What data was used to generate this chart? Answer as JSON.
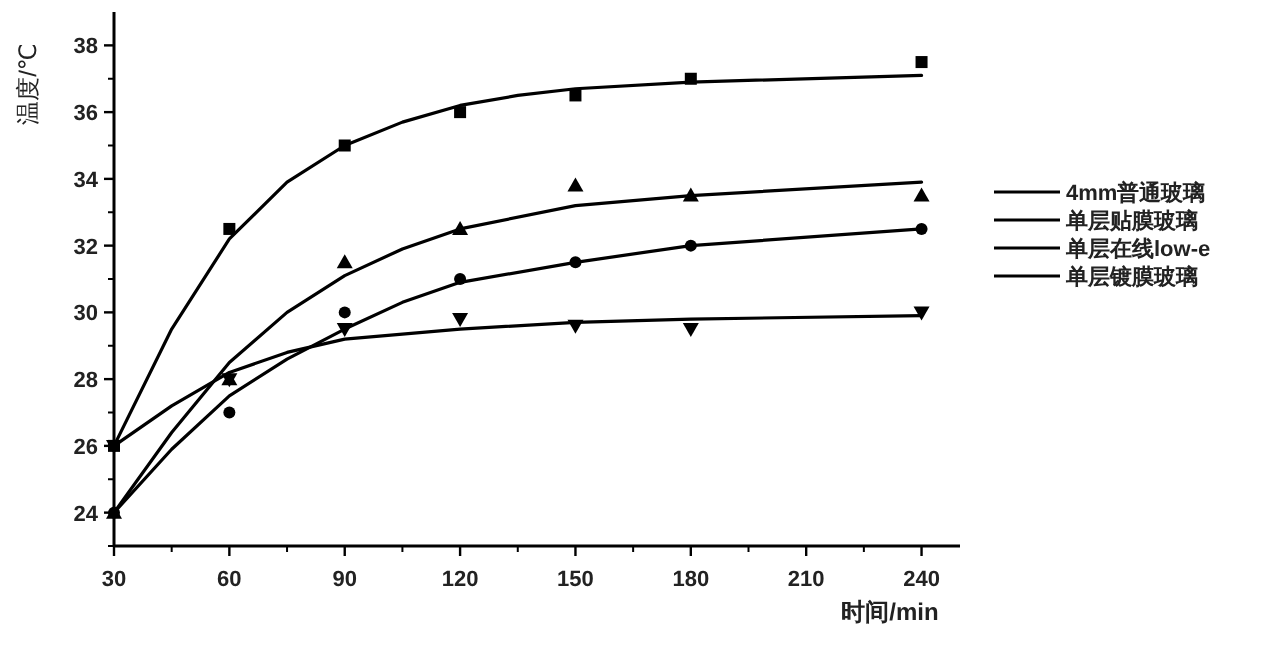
{
  "chart_data": {
    "type": "scatter",
    "xlabel": "时间/min",
    "ylabel": "温度/℃",
    "xlim": [
      30,
      250
    ],
    "ylim": [
      23,
      39
    ],
    "xticks": [
      30,
      60,
      90,
      120,
      150,
      180,
      210,
      240
    ],
    "yticks": [
      24,
      26,
      28,
      30,
      32,
      34,
      36,
      38
    ],
    "grid": false,
    "legend": "right",
    "x": [
      30,
      60,
      90,
      120,
      150,
      180,
      240
    ],
    "series": [
      {
        "type": "scatter",
        "marker": "square",
        "color": "#000000",
        "values": [
          26,
          32.5,
          35,
          36,
          36.5,
          37,
          37.5
        ]
      },
      {
        "type": "scatter",
        "marker": "circle",
        "color": "#000000",
        "values": [
          24,
          27,
          30,
          31,
          31.5,
          32,
          32.5
        ]
      },
      {
        "type": "scatter",
        "marker": "triangle",
        "color": "#000000",
        "values": [
          24,
          28,
          31.5,
          32.5,
          33.8,
          33.5,
          33.5
        ]
      },
      {
        "type": "scatter",
        "marker": "triangle-down",
        "color": "#000000",
        "values": [
          26,
          28,
          29.5,
          29.8,
          29.6,
          29.5,
          30
        ]
      },
      {
        "type": "line",
        "name": "4mm普通玻璃",
        "color": "#000000",
        "x": [
          30,
          45,
          60,
          75,
          90,
          105,
          120,
          135,
          150,
          180,
          240
        ],
        "values": [
          26,
          29.5,
          32.2,
          33.9,
          35,
          35.7,
          36.2,
          36.5,
          36.7,
          36.9,
          37.1
        ]
      },
      {
        "type": "line",
        "name": "单层贴膜玻璃",
        "color": "#000000",
        "x": [
          30,
          45,
          60,
          75,
          90,
          105,
          120,
          150,
          180,
          240
        ],
        "values": [
          24,
          25.9,
          27.5,
          28.6,
          29.5,
          30.3,
          30.9,
          31.5,
          32,
          32.5
        ]
      },
      {
        "type": "line",
        "name": "单层在线low-e",
        "color": "#000000",
        "x": [
          30,
          45,
          60,
          75,
          90,
          105,
          120,
          150,
          180,
          240
        ],
        "values": [
          24,
          26.4,
          28.5,
          30,
          31.1,
          31.9,
          32.5,
          33.2,
          33.5,
          33.9
        ]
      },
      {
        "type": "line",
        "name": "单层镀膜玻璃",
        "color": "#000000",
        "x": [
          30,
          45,
          60,
          75,
          90,
          120,
          150,
          180,
          240
        ],
        "values": [
          26,
          27.2,
          28.2,
          28.8,
          29.2,
          29.5,
          29.7,
          29.8,
          29.9
        ]
      }
    ]
  }
}
